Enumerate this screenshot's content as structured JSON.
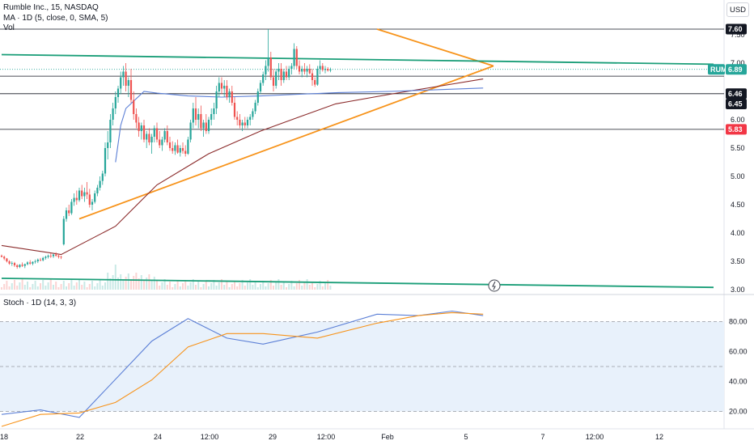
{
  "header": {
    "symbol_line": "Rumble Inc., 15, NASDAQ",
    "ma_line": "MA · 1D (5, close, 0, SMA, 5)",
    "vol_line": "Vol",
    "currency_button": "USD"
  },
  "oscillator": {
    "title": "Stoch · 1D (14, 3, 3)"
  },
  "colors": {
    "up": "#26a69a",
    "down": "#ef5350",
    "ma": "#8b2b2b",
    "blue_line": "#5b7fd6",
    "trendline": "#f7931a",
    "channel": "#1a9e78",
    "stoch_k": "#5b7fd6",
    "stoch_d": "#f7931a",
    "stoch_band": "#e8f1fb"
  },
  "chart_data": [
    {
      "type": "candlestick",
      "title": "Rumble Inc., 15, NASDAQ",
      "ylim": [
        2.95,
        7.72
      ],
      "y_ticks": [
        "3.00",
        "3.50",
        "4.00",
        "4.50",
        "5.00",
        "5.50",
        "6.00",
        "6.50",
        "7.00",
        "7.50"
      ],
      "x_ticks": [
        "18",
        "22",
        "24",
        "12:00",
        "29",
        "12:00",
        "Feb",
        "5",
        "7",
        "12:00",
        "12"
      ],
      "grid": false,
      "price_tags": [
        {
          "text": "7.60",
          "value": 7.6,
          "bg": "#131722",
          "fg": "#ffffff"
        },
        {
          "text": "RUM",
          "value": 6.89,
          "bg": "#26a69a",
          "fg": "#ffffff"
        },
        {
          "text": "6.89",
          "value": 6.89,
          "bg": "#26a69a",
          "fg": "#ffffff"
        },
        {
          "text": "6.46",
          "value": 6.46,
          "bg": "#131722",
          "fg": "#ffffff"
        },
        {
          "text": "6.45",
          "value": 6.45,
          "bg": "#131722",
          "fg": "#ffffff"
        },
        {
          "text": "5.83",
          "value": 5.83,
          "bg": "#f23645",
          "fg": "#ffffff"
        }
      ],
      "horizontal_levels": [
        7.6,
        6.77,
        6.46,
        5.83
      ],
      "candles": [
        [
          3.6,
          3.62,
          3.57,
          3.58
        ],
        [
          3.58,
          3.6,
          3.52,
          3.55
        ],
        [
          3.55,
          3.56,
          3.48,
          3.5
        ],
        [
          3.5,
          3.52,
          3.44,
          3.46
        ],
        [
          3.46,
          3.5,
          3.42,
          3.47
        ],
        [
          3.47,
          3.49,
          3.4,
          3.43
        ],
        [
          3.43,
          3.45,
          3.37,
          3.4
        ],
        [
          3.4,
          3.45,
          3.38,
          3.44
        ],
        [
          3.44,
          3.48,
          3.4,
          3.42
        ],
        [
          3.42,
          3.46,
          3.38,
          3.45
        ],
        [
          3.45,
          3.5,
          3.43,
          3.48
        ],
        [
          3.48,
          3.52,
          3.44,
          3.46
        ],
        [
          3.46,
          3.5,
          3.43,
          3.49
        ],
        [
          3.49,
          3.53,
          3.46,
          3.5
        ],
        [
          3.5,
          3.55,
          3.47,
          3.53
        ],
        [
          3.53,
          3.56,
          3.5,
          3.52
        ],
        [
          3.52,
          3.58,
          3.5,
          3.56
        ],
        [
          3.56,
          3.6,
          3.53,
          3.58
        ],
        [
          3.58,
          3.62,
          3.55,
          3.6
        ],
        [
          3.6,
          3.64,
          3.56,
          3.59
        ],
        [
          3.59,
          3.63,
          3.56,
          3.62
        ],
        [
          3.62,
          3.66,
          3.58,
          3.6
        ],
        [
          3.6,
          3.63,
          3.55,
          3.58
        ],
        [
          3.58,
          3.6,
          3.54,
          3.57
        ],
        [
          3.8,
          4.3,
          3.78,
          4.25
        ],
        [
          4.25,
          4.45,
          4.2,
          4.4
        ],
        [
          4.4,
          4.5,
          4.3,
          4.35
        ],
        [
          4.35,
          4.6,
          4.32,
          4.55
        ],
        [
          4.55,
          4.7,
          4.48,
          4.62
        ],
        [
          4.62,
          4.75,
          4.5,
          4.58
        ],
        [
          4.58,
          4.8,
          4.55,
          4.75
        ],
        [
          4.75,
          4.85,
          4.6,
          4.65
        ],
        [
          4.65,
          4.8,
          4.55,
          4.72
        ],
        [
          4.72,
          4.9,
          4.6,
          4.68
        ],
        [
          4.68,
          4.78,
          4.45,
          4.5
        ],
        [
          4.5,
          4.6,
          4.4,
          4.55
        ],
        [
          4.55,
          4.75,
          4.52,
          4.7
        ],
        [
          4.7,
          4.85,
          4.65,
          4.8
        ],
        [
          4.8,
          5.0,
          4.75,
          4.92
        ],
        [
          4.92,
          5.1,
          4.85,
          5.05
        ],
        [
          5.05,
          5.6,
          5.0,
          5.5
        ],
        [
          5.5,
          5.8,
          5.3,
          5.6
        ],
        [
          5.6,
          6.1,
          5.5,
          6.0
        ],
        [
          6.0,
          6.3,
          5.9,
          6.2
        ],
        [
          6.2,
          6.5,
          6.1,
          6.4
        ],
        [
          6.4,
          6.6,
          6.3,
          6.55
        ],
        [
          6.55,
          6.85,
          6.45,
          6.75
        ],
        [
          6.75,
          6.95,
          6.6,
          6.85
        ],
        [
          6.85,
          7.0,
          6.5,
          6.6
        ],
        [
          6.6,
          6.75,
          6.4,
          6.7
        ],
        [
          6.7,
          6.9,
          6.3,
          6.35
        ],
        [
          6.35,
          6.5,
          6.0,
          6.1
        ],
        [
          6.1,
          6.2,
          5.85,
          5.95
        ],
        [
          5.95,
          6.05,
          5.7,
          5.8
        ],
        [
          5.8,
          5.95,
          5.65,
          5.9
        ],
        [
          5.9,
          6.0,
          5.6,
          5.65
        ],
        [
          5.65,
          5.8,
          5.5,
          5.75
        ],
        [
          5.75,
          5.85,
          5.55,
          5.6
        ],
        [
          5.6,
          5.75,
          5.4,
          5.7
        ],
        [
          5.7,
          5.9,
          5.6,
          5.85
        ],
        [
          5.85,
          5.95,
          5.6,
          5.65
        ],
        [
          5.65,
          5.8,
          5.5,
          5.55
        ],
        [
          5.55,
          5.7,
          5.45,
          5.65
        ],
        [
          5.65,
          5.85,
          5.6,
          5.8
        ],
        [
          5.8,
          5.9,
          5.55,
          5.6
        ],
        [
          5.6,
          5.7,
          5.45,
          5.5
        ],
        [
          5.5,
          5.62,
          5.4,
          5.45
        ],
        [
          5.45,
          5.6,
          5.38,
          5.55
        ],
        [
          5.55,
          5.65,
          5.4,
          5.42
        ],
        [
          5.42,
          5.55,
          5.35,
          5.5
        ],
        [
          5.5,
          5.6,
          5.4,
          5.45
        ],
        [
          5.45,
          5.55,
          5.35,
          5.4
        ],
        [
          5.4,
          5.7,
          5.38,
          5.65
        ],
        [
          5.65,
          6.0,
          5.6,
          5.95
        ],
        [
          5.95,
          6.3,
          5.85,
          6.2
        ],
        [
          6.2,
          6.4,
          5.9,
          6.0
        ],
        [
          6.0,
          6.2,
          5.85,
          6.1
        ],
        [
          6.1,
          6.25,
          5.8,
          5.85
        ],
        [
          5.85,
          6.0,
          5.7,
          5.95
        ],
        [
          5.95,
          6.1,
          5.75,
          5.8
        ],
        [
          5.8,
          6.05,
          5.75,
          6.0
        ],
        [
          6.0,
          6.2,
          5.9,
          6.1
        ],
        [
          6.1,
          6.3,
          6.0,
          6.2
        ],
        [
          6.2,
          6.6,
          6.1,
          6.5
        ],
        [
          6.5,
          6.75,
          6.4,
          6.65
        ],
        [
          6.65,
          6.75,
          6.45,
          6.55
        ],
        [
          6.55,
          6.7,
          6.4,
          6.6
        ],
        [
          6.6,
          6.7,
          6.35,
          6.4
        ],
        [
          6.4,
          6.55,
          6.3,
          6.5
        ],
        [
          6.5,
          6.6,
          6.25,
          6.3
        ],
        [
          6.3,
          6.4,
          6.0,
          6.05
        ],
        [
          6.05,
          6.15,
          5.9,
          6.0
        ],
        [
          6.0,
          6.1,
          5.85,
          5.9
        ],
        [
          5.9,
          6.0,
          5.8,
          5.95
        ],
        [
          5.95,
          6.05,
          5.85,
          5.9
        ],
        [
          5.9,
          6.05,
          5.85,
          6.0
        ],
        [
          6.0,
          6.1,
          5.9,
          6.05
        ],
        [
          6.05,
          6.2,
          6.0,
          6.15
        ],
        [
          6.15,
          6.35,
          6.1,
          6.3
        ],
        [
          6.3,
          6.55,
          6.25,
          6.5
        ],
        [
          6.5,
          6.7,
          6.45,
          6.65
        ],
        [
          6.65,
          6.85,
          6.6,
          6.8
        ],
        [
          6.8,
          7.05,
          6.7,
          6.95
        ],
        [
          6.95,
          7.6,
          6.85,
          7.1
        ],
        [
          7.1,
          7.2,
          6.7,
          6.75
        ],
        [
          6.75,
          6.9,
          6.5,
          6.6
        ],
        [
          6.6,
          6.9,
          6.55,
          6.85
        ],
        [
          6.85,
          7.0,
          6.7,
          6.9
        ],
        [
          6.9,
          7.0,
          6.6,
          6.7
        ],
        [
          6.7,
          6.9,
          6.65,
          6.85
        ],
        [
          6.85,
          6.95,
          6.7,
          6.75
        ],
        [
          6.75,
          6.95,
          6.7,
          6.9
        ],
        [
          6.9,
          7.0,
          6.8,
          6.95
        ],
        [
          6.95,
          7.35,
          6.9,
          7.25
        ],
        [
          7.25,
          7.3,
          6.9,
          6.95
        ],
        [
          6.95,
          7.05,
          6.8,
          6.85
        ],
        [
          6.85,
          6.95,
          6.75,
          6.9
        ],
        [
          6.9,
          7.0,
          6.8,
          6.85
        ],
        [
          6.85,
          6.95,
          6.75,
          6.9
        ],
        [
          6.9,
          6.98,
          6.8,
          6.82
        ],
        [
          6.82,
          6.9,
          6.6,
          6.7
        ],
        [
          6.7,
          6.75,
          6.58,
          6.62
        ],
        [
          6.62,
          6.95,
          6.6,
          6.9
        ],
        [
          6.9,
          7.05,
          6.8,
          6.95
        ],
        [
          6.95,
          7.0,
          6.85,
          6.88
        ],
        [
          6.88,
          6.95,
          6.82,
          6.9
        ],
        [
          6.9,
          6.93,
          6.85,
          6.87
        ],
        [
          6.87,
          6.92,
          6.84,
          6.89
        ]
      ],
      "moving_average": [
        [
          0,
          3.78
        ],
        [
          23,
          3.62
        ],
        [
          44,
          4.12
        ],
        [
          60,
          4.85
        ],
        [
          80,
          5.4
        ],
        [
          100,
          5.8
        ],
        [
          115,
          6.05
        ],
        [
          129,
          6.28
        ],
        [
          150,
          6.45
        ],
        [
          170,
          6.6
        ],
        [
          186,
          6.72
        ]
      ],
      "blue_average": [
        [
          44,
          5.25
        ],
        [
          46,
          5.9
        ],
        [
          48,
          6.2
        ],
        [
          55,
          6.5
        ],
        [
          60,
          6.47
        ],
        [
          72,
          6.42
        ],
        [
          85,
          6.4
        ],
        [
          100,
          6.42
        ],
        [
          115,
          6.45
        ],
        [
          130,
          6.48
        ],
        [
          150,
          6.5
        ],
        [
          186,
          6.56
        ]
      ],
      "trendlines": [
        {
          "name": "triangle-lower",
          "from": [
            30,
            4.25
          ],
          "to": [
            190,
            6.95
          ],
          "color": "#f7931a"
        },
        {
          "name": "triangle-upper",
          "from": [
            145,
            7.6
          ],
          "to": [
            190,
            6.95
          ],
          "color": "#f7931a"
        },
        {
          "name": "channel-upper",
          "from": [
            0,
            7.15
          ],
          "to": [
            275,
            6.98
          ],
          "color": "#1a9e78"
        },
        {
          "name": "channel-lower",
          "from": [
            0,
            3.2
          ],
          "to": [
            275,
            3.04
          ],
          "color": "#1a9e78"
        }
      ]
    },
    {
      "type": "line",
      "title": "Stoch · 1D (14, 3, 3)",
      "ylim": [
        10,
        90
      ],
      "y_ticks": [
        "20.00",
        "40.00",
        "60.00",
        "80.00"
      ],
      "band": [
        20,
        80
      ],
      "series": [
        {
          "name": "%K",
          "x": [
            0,
            15,
            30,
            58,
            72,
            87,
            101,
            122,
            145,
            161,
            174,
            186
          ],
          "values": [
            18,
            21,
            16,
            67,
            82,
            69,
            65,
            73,
            85,
            84,
            87,
            84
          ]
        },
        {
          "name": "%D",
          "x": [
            0,
            15,
            30,
            44,
            58,
            72,
            87,
            101,
            122,
            145,
            161,
            174,
            186
          ],
          "values": [
            10,
            18,
            19,
            26,
            41,
            63,
            72,
            72,
            69,
            79,
            84,
            86,
            85
          ]
        }
      ]
    }
  ]
}
